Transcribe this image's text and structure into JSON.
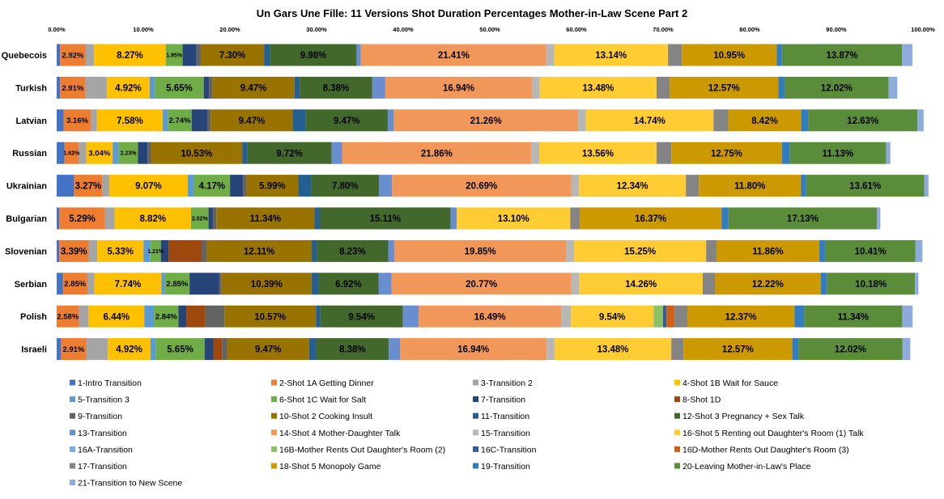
{
  "chart_data": {
    "type": "bar",
    "orientation": "horizontal",
    "stacked": true,
    "title": "Un Gars Une Fille:  11 Versions Shot Duration Percentages Mother-in-Law Scene Part 2",
    "xlim": [
      0,
      100
    ],
    "x_ticks": [
      "0.00%",
      "10.00%",
      "20.00%",
      "30.00%",
      "40.00%",
      "50.00%",
      "60.00%",
      "70.00%",
      "80.00%",
      "90.00%",
      "100.00%"
    ],
    "grid": false,
    "legend_position": "bottom",
    "categories": [
      "Quebecois",
      "Turkish",
      "Latvian",
      "Russian",
      "Ukrainian",
      "Bulgarian",
      "Slovenian",
      "Serbian",
      "Polish",
      "Israeli"
    ],
    "series": [
      {
        "name": "1-Intro Transition",
        "color": "#4472C4",
        "values": [
          0.4,
          0.4,
          0.8,
          0.9,
          2.0,
          0.3,
          0.3,
          0.7,
          0.0,
          0.5
        ]
      },
      {
        "name": "2-Shot 1A Getting Dinner",
        "color": "#ED7D31",
        "values": [
          2.92,
          2.91,
          3.16,
          1.62,
          3.27,
          5.29,
          3.39,
          2.85,
          2.58,
          2.91
        ]
      },
      {
        "name": "3-Transition 2",
        "color": "#A5A5A5",
        "values": [
          1.0,
          2.5,
          0.7,
          0.9,
          0.8,
          1.1,
          1.0,
          0.8,
          1.1,
          2.5
        ]
      },
      {
        "name": "4-Shot 1B Wait for Sauce",
        "color": "#FFC000",
        "values": [
          8.27,
          4.92,
          7.58,
          3.04,
          9.07,
          8.82,
          5.33,
          7.74,
          6.44,
          4.92
        ]
      },
      {
        "name": "5-Transition 3",
        "color": "#5B9BD5",
        "values": [
          0.0,
          0.6,
          0.6,
          0.7,
          0.7,
          0.0,
          0.8,
          0.4,
          1.1,
          0.6
        ]
      },
      {
        "name": "6-Shot 1C Wait for Salt",
        "color": "#70AD47",
        "values": [
          1.95,
          5.65,
          2.74,
          2.23,
          4.17,
          2.02,
          1.21,
          2.85,
          2.84,
          5.65
        ]
      },
      {
        "name": "7-Transition",
        "color": "#264478",
        "values": [
          1.6,
          0.6,
          1.8,
          1.1,
          1.5,
          0.5,
          0.9,
          3.4,
          0.9,
          1.0
        ]
      },
      {
        "name": "8-Shot 1D",
        "color": "#9E480E",
        "values": [
          0.0,
          0.0,
          0.0,
          0.0,
          0.0,
          0.0,
          3.8,
          0.0,
          2.2,
          1.0
        ]
      },
      {
        "name": "9-Transition",
        "color": "#636363",
        "values": [
          0.5,
          0.4,
          0.4,
          0.4,
          0.4,
          0.4,
          0.6,
          0.3,
          2.2,
          0.6
        ]
      },
      {
        "name": "10-Shot 2 Cooking Insult",
        "color": "#997300",
        "values": [
          7.3,
          9.47,
          9.47,
          10.53,
          5.99,
          11.34,
          12.11,
          10.39,
          10.57,
          9.47
        ]
      },
      {
        "name": "11-Transition",
        "color": "#255E91",
        "values": [
          0.7,
          0.6,
          1.5,
          0.6,
          1.5,
          0.6,
          0.6,
          0.8,
          0.5,
          0.8
        ]
      },
      {
        "name": "12-Shot 3 Pregnancy + Sex Talk",
        "color": "#43682B",
        "values": [
          9.98,
          8.38,
          9.47,
          9.72,
          7.8,
          15.11,
          8.23,
          6.92,
          9.54,
          8.38
        ]
      },
      {
        "name": "13-Transition",
        "color": "#698ED0",
        "values": [
          0.5,
          1.5,
          0.7,
          1.2,
          1.5,
          0.7,
          0.7,
          1.5,
          1.8,
          1.3
        ]
      },
      {
        "name": "14-Shot 4 Mother-Daughter Talk",
        "color": "#F1975A",
        "values": [
          21.41,
          16.94,
          21.26,
          21.86,
          20.69,
          0.0,
          19.85,
          20.77,
          16.49,
          16.94
        ]
      },
      {
        "name": "15-Transition",
        "color": "#B7B7B7",
        "values": [
          0.9,
          0.9,
          0.9,
          0.9,
          0.9,
          0.0,
          0.9,
          0.9,
          1.1,
          0.9
        ]
      },
      {
        "name": "16-Shot 5 Renting out Daughter's Room (1) Talk",
        "color": "#FFCD33",
        "values": [
          13.14,
          13.48,
          14.74,
          13.56,
          12.34,
          13.1,
          15.25,
          14.26,
          9.54,
          13.48
        ]
      },
      {
        "name": "16A-Transition",
        "color": "#7CAFDD",
        "values": [
          0.0,
          0.0,
          0.0,
          0.0,
          0.0,
          0.0,
          0.0,
          0.0,
          0.0,
          0.0
        ]
      },
      {
        "name": "16B-Mother Rents Out Daughter's Room (2)",
        "color": "#8CC168",
        "values": [
          0.0,
          0.0,
          0.0,
          0.0,
          0.0,
          0.0,
          0.0,
          0.0,
          1.1,
          0.0
        ]
      },
      {
        "name": "16C-Transition",
        "color": "#335AA1",
        "values": [
          0.0,
          0.0,
          0.0,
          0.0,
          0.0,
          0.0,
          0.0,
          0.0,
          0.4,
          0.0
        ]
      },
      {
        "name": "16D-Mother Rents Out Daughter's Room (3)",
        "color": "#D26012",
        "values": [
          0.0,
          0.0,
          0.0,
          0.0,
          0.0,
          0.0,
          0.0,
          0.0,
          0.9,
          0.0
        ]
      },
      {
        "name": "17-Transition",
        "color": "#848484",
        "values": [
          1.6,
          1.5,
          1.7,
          1.7,
          1.5,
          1.1,
          1.2,
          1.4,
          1.5,
          1.4
        ]
      },
      {
        "name": "18-Shot 5 Monopoly Game",
        "color": "#CC9A00",
        "values": [
          10.95,
          12.57,
          8.42,
          12.75,
          11.8,
          16.37,
          11.86,
          12.22,
          12.37,
          12.57
        ]
      },
      {
        "name": "19-Transition",
        "color": "#327DC2",
        "values": [
          0.6,
          0.7,
          0.8,
          0.9,
          0.6,
          0.8,
          0.7,
          0.7,
          1.1,
          0.7
        ]
      },
      {
        "name": "20-Leaving Mother-in-Law's Place",
        "color": "#5A8C39",
        "values": [
          13.87,
          12.02,
          12.63,
          11.13,
          13.61,
          17.13,
          10.41,
          10.18,
          11.34,
          12.02
        ]
      },
      {
        "name": "21-Transition to New Scene",
        "color": "#8FAADC",
        "values": [
          1.2,
          1.0,
          0.7,
          0.5,
          0.5,
          0.4,
          0.8,
          0.4,
          1.2,
          0.9
        ]
      }
    ],
    "value_labels": [
      [
        {
          "s": 1,
          "t": "2.92%"
        },
        {
          "s": 3,
          "t": "8.27%"
        },
        {
          "s": 5,
          "t": "1.95%"
        },
        {
          "s": 9,
          "t": "7.30%"
        },
        {
          "s": 11,
          "t": "9.98%"
        },
        {
          "s": 13,
          "t": "21.41%"
        },
        {
          "s": 15,
          "t": "13.14%"
        },
        {
          "s": 21,
          "t": "10.95%"
        },
        {
          "s": 23,
          "t": "13.87%"
        }
      ],
      [
        {
          "s": 1,
          "t": "2.91%"
        },
        {
          "s": 3,
          "t": "4.92%"
        },
        {
          "s": 5,
          "t": "5.65%"
        },
        {
          "s": 9,
          "t": "9.47%"
        },
        {
          "s": 11,
          "t": "8.38%"
        },
        {
          "s": 13,
          "t": "16.94%"
        },
        {
          "s": 15,
          "t": "13.48%"
        },
        {
          "s": 21,
          "t": "12.57%"
        },
        {
          "s": 23,
          "t": "12.02%"
        }
      ],
      [
        {
          "s": 1,
          "t": "3.16%"
        },
        {
          "s": 3,
          "t": "7.58%"
        },
        {
          "s": 5,
          "t": "2.74%"
        },
        {
          "s": 9,
          "t": "9.47%"
        },
        {
          "s": 11,
          "t": "9.47%"
        },
        {
          "s": 13,
          "t": "21.26%"
        },
        {
          "s": 15,
          "t": "14.74%"
        },
        {
          "s": 21,
          "t": "8.42%"
        },
        {
          "s": 23,
          "t": "12.63%"
        }
      ],
      [
        {
          "s": 1,
          "t": "1.62%"
        },
        {
          "s": 3,
          "t": "3.04%"
        },
        {
          "s": 5,
          "t": "2.23%"
        },
        {
          "s": 9,
          "t": "10.53%"
        },
        {
          "s": 11,
          "t": "9.72%"
        },
        {
          "s": 13,
          "t": "21.86%"
        },
        {
          "s": 15,
          "t": "13.56%"
        },
        {
          "s": 21,
          "t": "12.75%"
        },
        {
          "s": 23,
          "t": "11.13%"
        }
      ],
      [
        {
          "s": 1,
          "t": "3.27%"
        },
        {
          "s": 3,
          "t": "9.07%"
        },
        {
          "s": 5,
          "t": "4.17%"
        },
        {
          "s": 9,
          "t": "5.99%"
        },
        {
          "s": 11,
          "t": "7.80%"
        },
        {
          "s": 13,
          "t": "20.69%"
        },
        {
          "s": 15,
          "t": "12.34%"
        },
        {
          "s": 21,
          "t": "11.80%"
        },
        {
          "s": 23,
          "t": "13.61%"
        }
      ],
      [
        {
          "s": 1,
          "t": "5.29%"
        },
        {
          "s": 3,
          "t": "8.82%"
        },
        {
          "s": 5,
          "t": "2.02%"
        },
        {
          "s": 9,
          "t": "11.34%"
        },
        {
          "s": 11,
          "t": "15.11%"
        },
        {
          "s": 15,
          "t": "13.10%"
        },
        {
          "s": 21,
          "t": "16.37%"
        },
        {
          "s": 23,
          "t": "17.13%"
        }
      ],
      [
        {
          "s": 1,
          "t": "3.39%"
        },
        {
          "s": 3,
          "t": "5.33%"
        },
        {
          "s": 5,
          "t": "1.21%"
        },
        {
          "s": 9,
          "t": "12.11%"
        },
        {
          "s": 11,
          "t": "8.23%"
        },
        {
          "s": 13,
          "t": "19.85%"
        },
        {
          "s": 15,
          "t": "15.25%"
        },
        {
          "s": 21,
          "t": "11.86%"
        },
        {
          "s": 23,
          "t": "10.41%"
        }
      ],
      [
        {
          "s": 1,
          "t": "2.85%"
        },
        {
          "s": 3,
          "t": "7.74%"
        },
        {
          "s": 5,
          "t": "2.85%"
        },
        {
          "s": 9,
          "t": "10.39%"
        },
        {
          "s": 11,
          "t": "6.92%"
        },
        {
          "s": 13,
          "t": "20.77%"
        },
        {
          "s": 15,
          "t": "14.26%"
        },
        {
          "s": 21,
          "t": "12.22%"
        },
        {
          "s": 23,
          "t": "10.18%"
        }
      ],
      [
        {
          "s": 1,
          "t": "2.58%"
        },
        {
          "s": 3,
          "t": "6.44%"
        },
        {
          "s": 5,
          "t": "2.84%"
        },
        {
          "s": 9,
          "t": "10.57%"
        },
        {
          "s": 11,
          "t": "9.54%"
        },
        {
          "s": 13,
          "t": "16.49%"
        },
        {
          "s": 15,
          "t": "9.54%"
        },
        {
          "s": 21,
          "t": "12.37%"
        },
        {
          "s": 23,
          "t": "11.34%"
        }
      ],
      [
        {
          "s": 1,
          "t": "2.91%"
        },
        {
          "s": 3,
          "t": "4.92%"
        },
        {
          "s": 5,
          "t": "5.65%"
        },
        {
          "s": 9,
          "t": "9.47%"
        },
        {
          "s": 11,
          "t": "8.38%"
        },
        {
          "s": 13,
          "t": "16.94%"
        },
        {
          "s": 15,
          "t": "13.48%"
        },
        {
          "s": 21,
          "t": "12.57%"
        },
        {
          "s": 23,
          "t": "12.02%"
        }
      ]
    ]
  }
}
